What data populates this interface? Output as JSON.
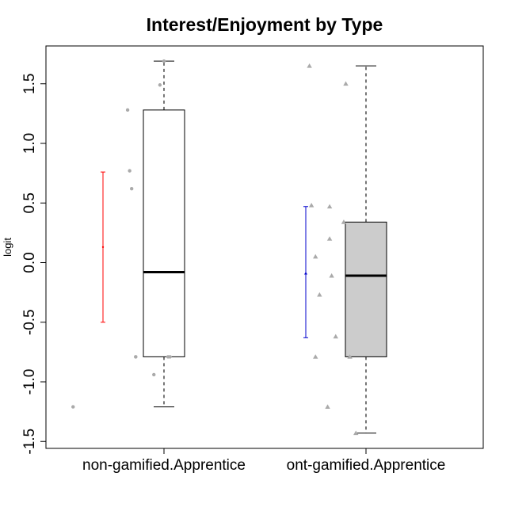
{
  "chart_data": {
    "type": "box",
    "title": "Interest/Enjoyment by Type",
    "xlabel": "",
    "ylabel": "logit",
    "ylim": [
      -1.55,
      1.82
    ],
    "yticks": [
      -1.5,
      -1.0,
      -0.5,
      0.0,
      0.5,
      1.0,
      1.5
    ],
    "ytick_labels": [
      "-1.5",
      "-1.0",
      "-0.5",
      "0.0",
      "0.5",
      "1.0",
      "1.5"
    ],
    "grid": false,
    "categories": [
      "non-gamified.Apprentice",
      "ont-gamified.Apprentice"
    ],
    "boxes": [
      {
        "name": "non-gamified.Apprentice",
        "fill": "#ffffff",
        "min": -1.21,
        "q1": -0.79,
        "median": -0.08,
        "q3": 1.28,
        "max": 1.69
      },
      {
        "name": "ont-gamified.Apprentice",
        "fill": "#cccccc",
        "min": -1.43,
        "q1": -0.79,
        "median": -0.11,
        "q3": 0.34,
        "max": 1.65
      }
    ],
    "error_bars": [
      {
        "group": "non-gamified.Apprentice",
        "color": "#ff0000",
        "center": 0.13,
        "lower": -0.5,
        "upper": 0.76,
        "marker": "circle"
      },
      {
        "group": "ont-gamified.Apprentice",
        "color": "#0000cc",
        "center": -0.09,
        "lower": -0.63,
        "upper": 0.47,
        "marker": "triangle"
      }
    ],
    "points": [
      {
        "group": "non-gamified.Apprentice",
        "marker": "circle",
        "color": "#aaaaaa",
        "x": [
          0.55,
          0.82,
          0.83,
          0.84,
          0.86,
          0.86,
          0.95,
          0.98,
          1.0,
          1.02,
          1.03
        ],
        "y": [
          -1.21,
          1.28,
          0.77,
          0.62,
          -0.79,
          -0.79,
          -0.94,
          1.49,
          1.69,
          -0.79,
          -0.79
        ]
      },
      {
        "group": "ont-gamified.Apprentice",
        "marker": "triangle",
        "color": "#aaaaaa",
        "x": [
          1.72,
          1.73,
          1.75,
          1.75,
          1.77,
          1.81,
          1.82,
          1.82,
          1.83,
          1.85,
          1.89,
          1.9,
          1.92,
          1.95
        ],
        "y": [
          1.65,
          0.48,
          0.05,
          -0.79,
          -0.27,
          -1.21,
          0.47,
          0.2,
          -0.11,
          -0.62,
          0.34,
          1.5,
          -0.79,
          -1.43
        ]
      }
    ]
  }
}
